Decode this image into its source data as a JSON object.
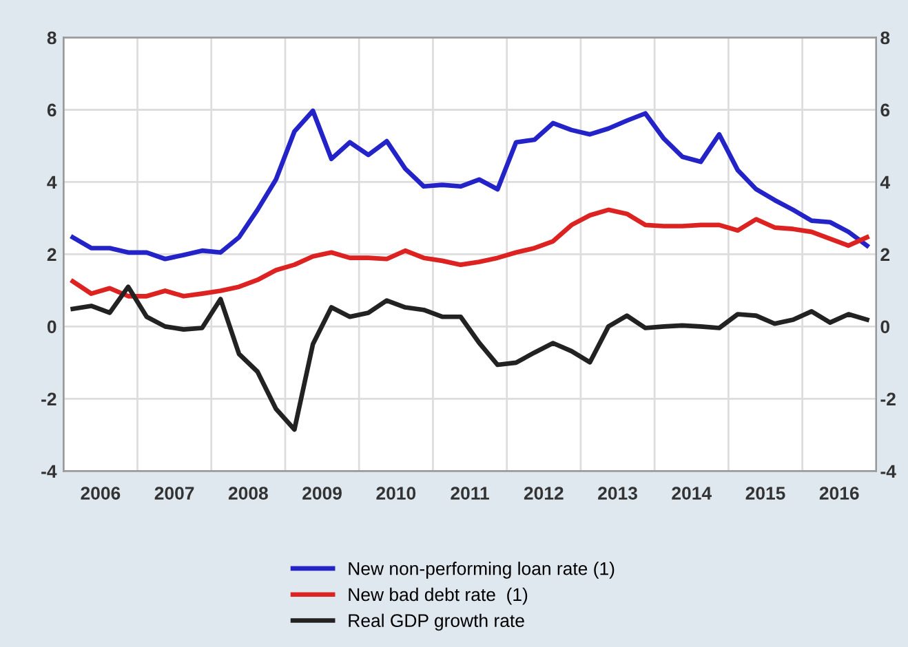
{
  "chart_data": {
    "type": "line",
    "x": [
      2006.125,
      2006.375,
      2006.625,
      2006.875,
      2007.125,
      2007.375,
      2007.625,
      2007.875,
      2008.125,
      2008.375,
      2008.625,
      2008.875,
      2009.125,
      2009.375,
      2009.625,
      2009.875,
      2010.125,
      2010.375,
      2010.625,
      2010.875,
      2011.125,
      2011.375,
      2011.625,
      2011.875,
      2012.125,
      2012.375,
      2012.625,
      2012.875,
      2013.125,
      2013.375,
      2013.625,
      2013.875,
      2014.125,
      2014.375,
      2014.625,
      2014.875,
      2015.125,
      2015.375,
      2015.625,
      2015.875,
      2016.125,
      2016.375,
      2016.625,
      2016.875
    ],
    "series": [
      {
        "name": "New non-performing loan rate (1)",
        "color": "#2323c8",
        "values": [
          2.47,
          2.17,
          2.17,
          2.05,
          2.05,
          1.87,
          1.98,
          2.1,
          2.05,
          2.47,
          3.23,
          4.07,
          5.4,
          5.97,
          4.64,
          5.1,
          4.75,
          5.13,
          4.37,
          3.88,
          3.92,
          3.88,
          4.07,
          3.8,
          5.1,
          5.17,
          5.63,
          5.44,
          5.32,
          5.48,
          5.7,
          5.9,
          5.2,
          4.7,
          4.56,
          5.32,
          4.33,
          3.8,
          3.5,
          3.23,
          2.93,
          2.89,
          2.62,
          2.24
        ]
      },
      {
        "name": "New bad debt rate  (1)",
        "color": "#dd2222",
        "values": [
          1.25,
          0.91,
          1.06,
          0.84,
          0.84,
          0.99,
          0.84,
          0.91,
          0.99,
          1.1,
          1.29,
          1.56,
          1.71,
          1.94,
          2.05,
          1.9,
          1.9,
          1.87,
          2.1,
          1.9,
          1.82,
          1.71,
          1.79,
          1.9,
          2.05,
          2.17,
          2.36,
          2.81,
          3.08,
          3.23,
          3.12,
          2.81,
          2.78,
          2.78,
          2.81,
          2.81,
          2.66,
          2.97,
          2.74,
          2.7,
          2.62,
          2.43,
          2.24,
          2.47
        ]
      },
      {
        "name": "Real GDP growth rate",
        "color": "#222222",
        "values": [
          0.49,
          0.57,
          0.38,
          1.1,
          0.27,
          0.0,
          -0.08,
          -0.04,
          0.76,
          -0.76,
          -1.25,
          -2.28,
          -2.85,
          -0.49,
          0.53,
          0.27,
          0.38,
          0.72,
          0.53,
          0.46,
          0.27,
          0.27,
          -0.45,
          -1.06,
          -1.0,
          -0.72,
          -0.46,
          -0.68,
          -0.99,
          0.0,
          0.3,
          -0.04,
          0.0,
          0.03,
          0.0,
          -0.04,
          0.34,
          0.3,
          0.08,
          0.19,
          0.42,
          0.11,
          0.34,
          0.19
        ]
      }
    ],
    "xlim": [
      2006,
      2017
    ],
    "xticks": [
      {
        "value": 2006,
        "label": null
      },
      {
        "value": 2006.5,
        "label": "2006"
      },
      {
        "value": 2007,
        "label": null
      },
      {
        "value": 2007.5,
        "label": "2007"
      },
      {
        "value": 2008,
        "label": null
      },
      {
        "value": 2008.5,
        "label": "2008"
      },
      {
        "value": 2009,
        "label": null
      },
      {
        "value": 2009.5,
        "label": "2009"
      },
      {
        "value": 2010,
        "label": null
      },
      {
        "value": 2010.5,
        "label": "2010"
      },
      {
        "value": 2011,
        "label": null
      },
      {
        "value": 2011.5,
        "label": "2011"
      },
      {
        "value": 2012,
        "label": null
      },
      {
        "value": 2012.5,
        "label": "2012"
      },
      {
        "value": 2013,
        "label": null
      },
      {
        "value": 2013.5,
        "label": "2013"
      },
      {
        "value": 2014,
        "label": null
      },
      {
        "value": 2014.5,
        "label": "2014"
      },
      {
        "value": 2015,
        "label": null
      },
      {
        "value": 2015.5,
        "label": "2015"
      },
      {
        "value": 2016,
        "label": null
      },
      {
        "value": 2016.5,
        "label": "2016"
      },
      {
        "value": 2017,
        "label": null
      }
    ],
    "ylim": [
      -4,
      8
    ],
    "yticks": [
      -4,
      -2,
      0,
      2,
      4,
      6,
      8
    ],
    "y2lim": [
      -4,
      8
    ],
    "y2ticks": [
      -4,
      -2,
      0,
      2,
      4,
      6,
      8
    ],
    "grid": true,
    "legend": "bottom",
    "marker": "none",
    "line_style": "solid"
  }
}
